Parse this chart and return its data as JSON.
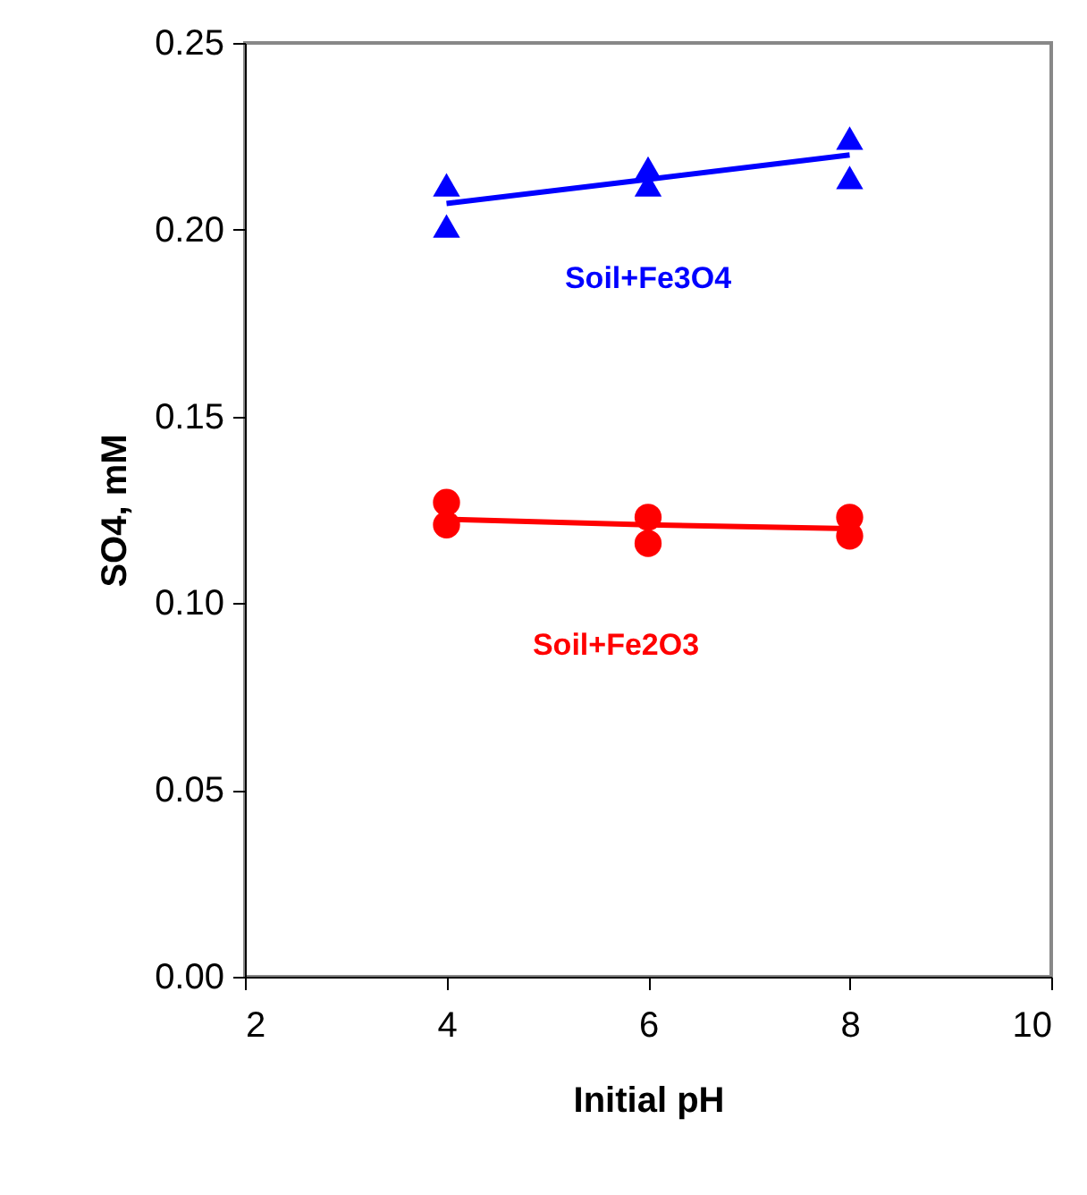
{
  "chart_data": {
    "type": "scatter",
    "xlabel": "Initial pH",
    "ylabel": "SO4, mM",
    "xlim": [
      2,
      10
    ],
    "xticks": [
      2,
      4,
      6,
      8,
      10
    ],
    "ylim": [
      0,
      0.25
    ],
    "yticks": [
      {
        "value": 0,
        "label": "0.00"
      },
      {
        "value": 0.05,
        "label": "0.05"
      },
      {
        "value": 0.1,
        "label": "0.10"
      },
      {
        "value": 0.15,
        "label": "0.15"
      },
      {
        "value": 0.2,
        "label": "0.20"
      },
      {
        "value": 0.25,
        "label": "0.25"
      }
    ],
    "grid": false,
    "series": [
      {
        "name": "Soil+Fe3O4",
        "marker": "triangle",
        "color": "#0000ff",
        "x": [
          4,
          4,
          6,
          6,
          8,
          8
        ],
        "values": [
          0.212,
          0.201,
          0.2165,
          0.212,
          0.2245,
          0.214
        ]
      },
      {
        "type": "line",
        "marker": "none",
        "color": "#0000ff",
        "x": [
          4,
          6,
          8
        ],
        "values": [
          0.207,
          0.2135,
          0.22
        ]
      },
      {
        "name": "Soil+Fe2O3",
        "marker": "circle",
        "color": "#ff0000",
        "x": [
          4,
          4,
          6,
          6,
          8,
          8
        ],
        "values": [
          0.127,
          0.121,
          0.123,
          0.116,
          0.123,
          0.118
        ]
      },
      {
        "type": "line",
        "marker": "none",
        "color": "#ff0000",
        "x": [
          4,
          6,
          8
        ],
        "values": [
          0.1225,
          0.121,
          0.12
        ]
      }
    ]
  }
}
